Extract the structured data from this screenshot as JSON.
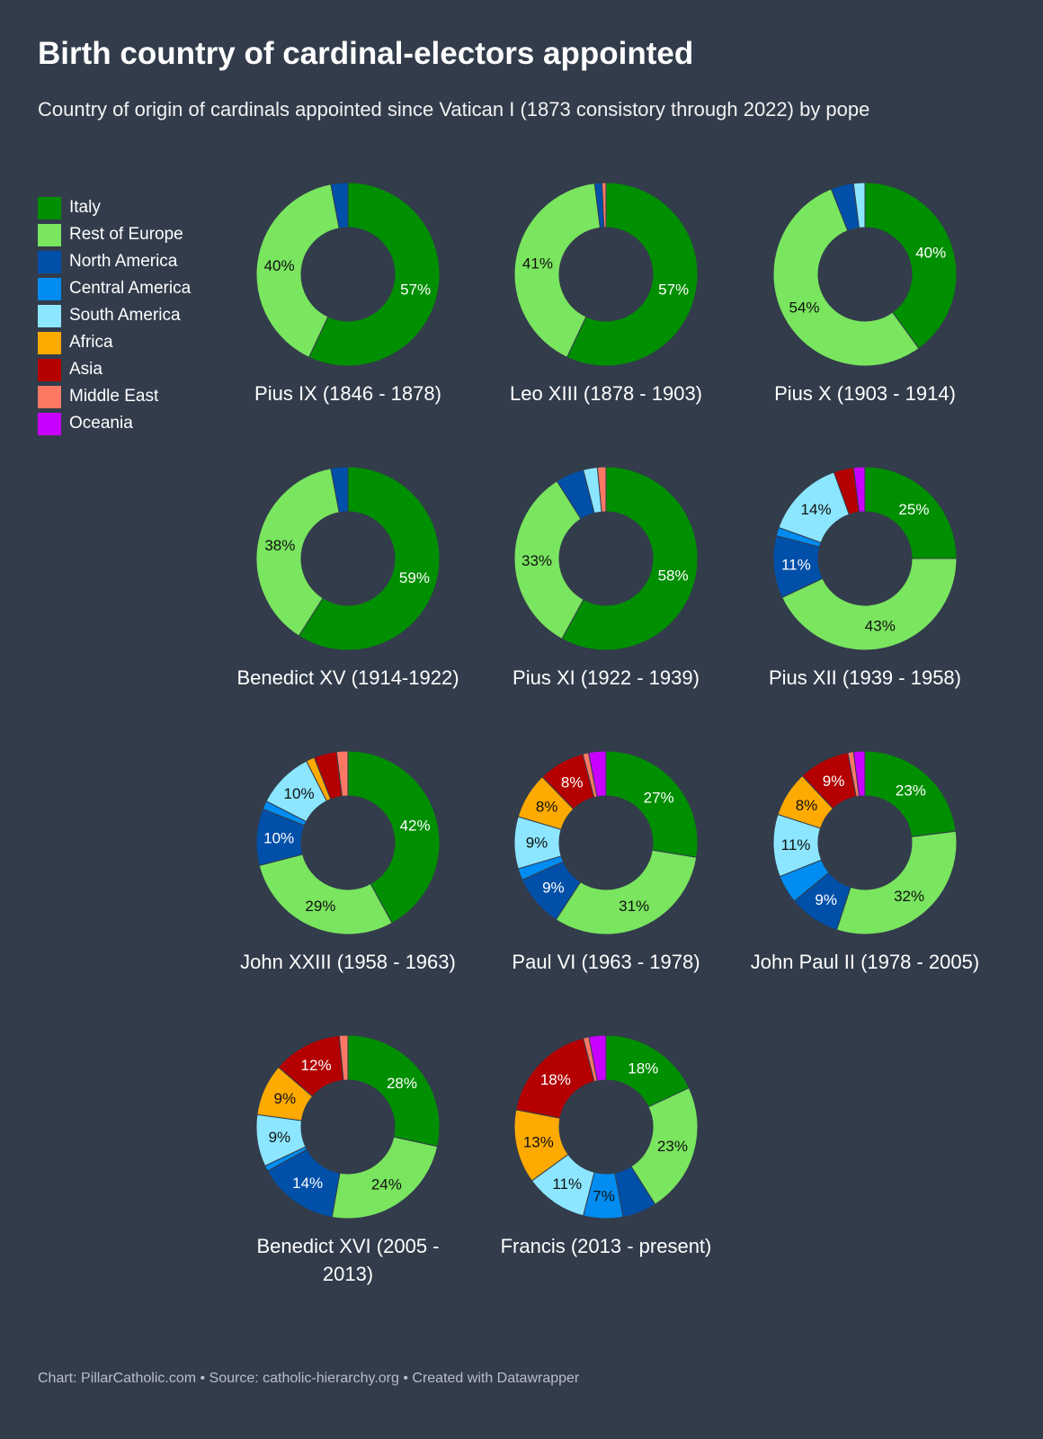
{
  "header": {
    "title": "Birth country of cardinal-electors appointed",
    "subtitle": "Country of origin of cardinals appointed since Vatican I (1873 consistory through 2022) by pope"
  },
  "footer": {
    "text": "Chart: PillarCatholic.com • Source: catholic-hierarchy.org • Created with Datawrapper"
  },
  "legend": [
    {
      "label": "Italy",
      "color": "#008f00"
    },
    {
      "label": "Rest of Europe",
      "color": "#7ae55f"
    },
    {
      "label": "North America",
      "color": "#0050aa"
    },
    {
      "label": "Central America",
      "color": "#008cf0"
    },
    {
      "label": "South America",
      "color": "#8ce6ff"
    },
    {
      "label": "Africa",
      "color": "#ffaa00"
    },
    {
      "label": "Asia",
      "color": "#b40000"
    },
    {
      "label": "Middle East",
      "color": "#ff7864"
    },
    {
      "label": "Oceania",
      "color": "#c800ff"
    }
  ],
  "chart_data": [
    {
      "type": "pie",
      "title": "Pius IX (1846 - 1878)",
      "categories": [
        "Italy",
        "Rest of Europe",
        "North America",
        "Central America",
        "South America",
        "Africa",
        "Asia",
        "Middle East",
        "Oceania"
      ],
      "values": [
        57,
        40,
        3,
        0,
        0,
        0,
        0,
        0,
        0
      ],
      "labels": [
        "57%",
        "40%",
        "",
        "",
        "",
        "",
        "",
        "",
        ""
      ]
    },
    {
      "type": "pie",
      "title": "Leo XIII (1878 - 1903)",
      "categories": [
        "Italy",
        "Rest of Europe",
        "North America",
        "Central America",
        "South America",
        "Africa",
        "Asia",
        "Middle East",
        "Oceania"
      ],
      "values": [
        57,
        41,
        1.3,
        0,
        0,
        0,
        0,
        0.7,
        0
      ],
      "labels": [
        "57%",
        "41%",
        "",
        "",
        "",
        "",
        "",
        "",
        ""
      ]
    },
    {
      "type": "pie",
      "title": "Pius X (1903 - 1914)",
      "categories": [
        "Italy",
        "Rest of Europe",
        "North America",
        "Central America",
        "South America",
        "Africa",
        "Asia",
        "Middle East",
        "Oceania"
      ],
      "values": [
        40,
        54,
        4,
        0,
        2,
        0,
        0,
        0,
        0
      ],
      "labels": [
        "40%",
        "54%",
        "",
        "",
        "",
        "",
        "",
        "",
        ""
      ]
    },
    {
      "type": "pie",
      "title": "Benedict XV (1914-1922)",
      "categories": [
        "Italy",
        "Rest of Europe",
        "North America",
        "Central America",
        "South America",
        "Africa",
        "Asia",
        "Middle East",
        "Oceania"
      ],
      "values": [
        59,
        38,
        3,
        0,
        0,
        0,
        0,
        0,
        0
      ],
      "labels": [
        "59%",
        "38%",
        "",
        "",
        "",
        "",
        "",
        "",
        ""
      ]
    },
    {
      "type": "pie",
      "title": "Pius XI (1922 - 1939)",
      "categories": [
        "Italy",
        "Rest of Europe",
        "North America",
        "Central America",
        "South America",
        "Africa",
        "Asia",
        "Middle East",
        "Oceania"
      ],
      "values": [
        58,
        33,
        5,
        0,
        2.5,
        0,
        0,
        1.5,
        0
      ],
      "labels": [
        "58%",
        "33%",
        "",
        "",
        "",
        "",
        "",
        "",
        ""
      ]
    },
    {
      "type": "pie",
      "title": "Pius XII (1939 - 1958)",
      "categories": [
        "Italy",
        "Rest of Europe",
        "North America",
        "Central America",
        "South America",
        "Africa",
        "Asia",
        "Middle East",
        "Oceania"
      ],
      "values": [
        25,
        43,
        11,
        1.5,
        14,
        0,
        3.5,
        0,
        2
      ],
      "labels": [
        "25%",
        "43%",
        "11%",
        "",
        "14%",
        "",
        "",
        "",
        ""
      ]
    },
    {
      "type": "pie",
      "title": "John XXIII (1958 - 1963)",
      "categories": [
        "Italy",
        "Rest of Europe",
        "North America",
        "Central America",
        "South America",
        "Africa",
        "Asia",
        "Middle East",
        "Oceania"
      ],
      "values": [
        42,
        29,
        10,
        1.5,
        10,
        1.5,
        4,
        2,
        0
      ],
      "labels": [
        "42%",
        "29%",
        "10%",
        "",
        "10%",
        "",
        "",
        "",
        ""
      ]
    },
    {
      "type": "pie",
      "title": "Paul VI (1963 - 1978)",
      "categories": [
        "Italy",
        "Rest of Europe",
        "North America",
        "Central America",
        "South America",
        "Africa",
        "Asia",
        "Middle East",
        "Oceania"
      ],
      "values": [
        27,
        31,
        9,
        2,
        9,
        8,
        8,
        1,
        3
      ],
      "labels": [
        "27%",
        "31%",
        "9%",
        "",
        "9%",
        "8%",
        "8%",
        "",
        ""
      ]
    },
    {
      "type": "pie",
      "title": "John Paul II (1978 - 2005)",
      "categories": [
        "Italy",
        "Rest of Europe",
        "North America",
        "Central America",
        "South America",
        "Africa",
        "Asia",
        "Middle East",
        "Oceania"
      ],
      "values": [
        23,
        32,
        9,
        5,
        11,
        8,
        9,
        1,
        2
      ],
      "labels": [
        "23%",
        "32%",
        "9%",
        "",
        "11%",
        "8%",
        "9%",
        "",
        ""
      ]
    },
    {
      "type": "pie",
      "title": "Benedict XVI (2005 - 2013)",
      "categories": [
        "Italy",
        "Rest of Europe",
        "North America",
        "Central America",
        "South America",
        "Africa",
        "Asia",
        "Middle East",
        "Oceania"
      ],
      "values": [
        28,
        24,
        14,
        1,
        9,
        9,
        12,
        1.5,
        0
      ],
      "labels": [
        "28%",
        "24%",
        "14%",
        "",
        "9%",
        "9%",
        "12%",
        "",
        ""
      ]
    },
    {
      "type": "pie",
      "title": "Francis (2013 - present)",
      "categories": [
        "Italy",
        "Rest of Europe",
        "North America",
        "Central America",
        "South America",
        "Africa",
        "Asia",
        "Middle East",
        "Oceania"
      ],
      "values": [
        18,
        23,
        6,
        7,
        11,
        13,
        18,
        1,
        3
      ],
      "labels": [
        "18%",
        "23%",
        "",
        "7%",
        "11%",
        "13%",
        "18%",
        "",
        ""
      ]
    }
  ]
}
